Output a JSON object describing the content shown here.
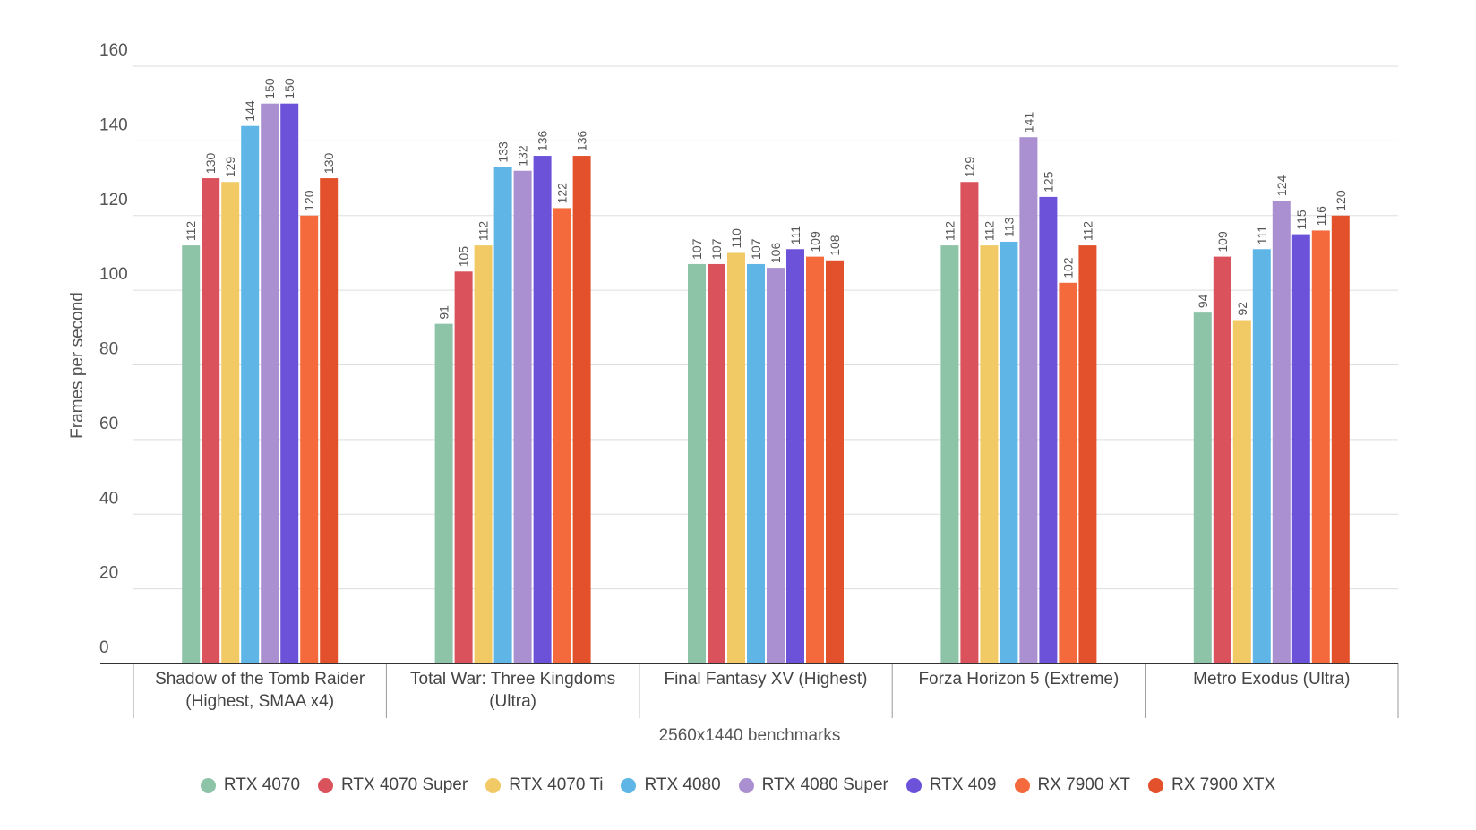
{
  "chart_data": {
    "type": "bar",
    "y_label": "Frames per second",
    "x_label": "2560x1440 benchmarks",
    "categories": [
      "Shadow of the Tomb Raider (Highest, SMAA x4)",
      "Total War: Three Kingdoms (Ultra)",
      "Final Fantasy XV (Highest)",
      "Forza Horizon 5 (Extreme)",
      "Metro Exodus (Ultra)"
    ],
    "series": [
      {
        "name": "RTX 4070",
        "color": "#8dc4a8",
        "values": [
          112,
          91,
          107,
          112,
          94
        ]
      },
      {
        "name": "RTX 4070 Super",
        "color": "#d9525c",
        "values": [
          130,
          105,
          107,
          129,
          109
        ]
      },
      {
        "name": "RTX 4070 Ti",
        "color": "#f1ca66",
        "values": [
          129,
          112,
          110,
          112,
          92
        ]
      },
      {
        "name": "RTX 4080",
        "color": "#5fb6e6",
        "values": [
          144,
          133,
          107,
          113,
          111
        ]
      },
      {
        "name": "RTX 4080 Super",
        "color": "#aa90d0",
        "values": [
          150,
          132,
          106,
          141,
          124
        ]
      },
      {
        "name": "RTX 409",
        "color": "#6c52d9",
        "values": [
          150,
          136,
          111,
          125,
          115
        ]
      },
      {
        "name": "RX 7900 XT",
        "color": "#f46a3c",
        "values": [
          120,
          122,
          109,
          102,
          116
        ]
      },
      {
        "name": "RX 7900 XTX",
        "color": "#e2512b",
        "values": [
          130,
          136,
          108,
          112,
          120
        ]
      }
    ],
    "ylim": [
      0,
      160
    ],
    "yticks": [
      0,
      20,
      40,
      60,
      80,
      100,
      120,
      140,
      160
    ],
    "grid": true,
    "legend": "bottom"
  }
}
